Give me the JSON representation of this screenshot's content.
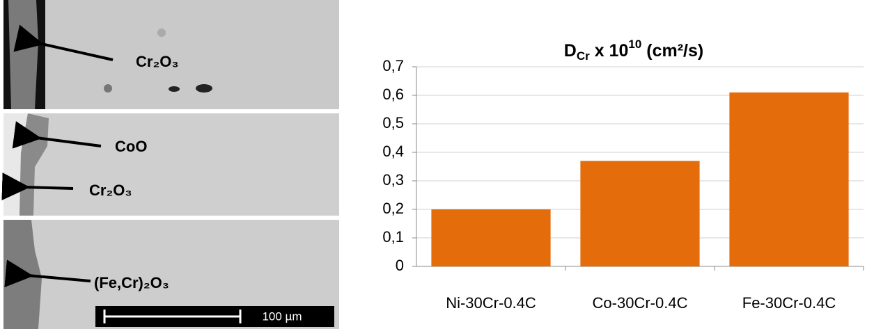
{
  "micrographs": {
    "labels": [
      "Cr₂O₃",
      "CoO",
      "Cr₂O₃",
      "(Fe,Cr)₂O₃"
    ],
    "scale_bar": "100 µm"
  },
  "chart_data": {
    "type": "bar",
    "title": [
      "D",
      "Cr",
      " x 10",
      "10",
      " (cm²/s)"
    ],
    "categories": [
      "Ni-30Cr-0.4C",
      "Co-30Cr-0.4C",
      "Fe-30Cr-0.4C"
    ],
    "values": [
      0.2,
      0.37,
      0.61
    ],
    "color": "#e46c0a",
    "ylim": [
      0,
      0.7
    ],
    "yticks": [
      0,
      {
        "value": 0.1,
        "label": "0,1"
      },
      {
        "value": 0.2,
        "label": "0,2"
      },
      {
        "value": 0.3,
        "label": "0,3"
      },
      {
        "value": 0.4,
        "label": "0,4"
      },
      {
        "value": 0.5,
        "label": "0,5"
      },
      {
        "value": 0.6,
        "label": "0,6"
      },
      {
        "value": 0.7,
        "label": "0,7"
      }
    ],
    "grid": true
  }
}
